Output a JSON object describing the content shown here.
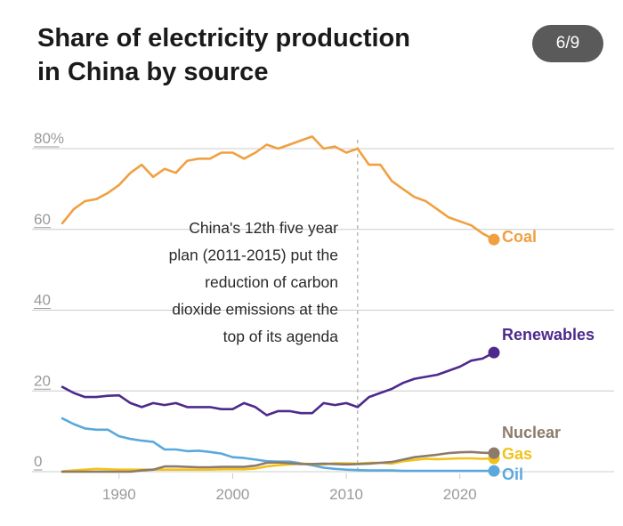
{
  "title_line1": "Share of electricity production",
  "title_line2": "in China by source",
  "page_indicator": "6/9",
  "colors": {
    "coal": "#f0a040",
    "renewables": "#4d2a8c",
    "nuclear": "#8c7b6b",
    "gas": "#f2c21b",
    "oil": "#5aa9dc",
    "grid": "#cccccc",
    "tick": "#9a9a9a"
  },
  "chart_data": {
    "type": "line",
    "title": "Share of electricity production in China by source",
    "xlabel": "",
    "ylabel": "",
    "xlim": [
      1985,
      2023
    ],
    "ylim": [
      0,
      80
    ],
    "x_ticks": [
      1990,
      2000,
      2010,
      2020
    ],
    "y_ticks": [
      {
        "value": 0,
        "label": "0"
      },
      {
        "value": 20,
        "label": "20"
      },
      {
        "value": 40,
        "label": "40"
      },
      {
        "value": 60,
        "label": "60"
      },
      {
        "value": 80,
        "label": "80%"
      }
    ],
    "annotation": {
      "x": 2011,
      "lines": [
        "China's 12th five year",
        "plan (2011-2015) put the",
        "reduction of carbon",
        "dioxide emissions at the",
        "top of its agenda"
      ]
    },
    "x": [
      1985,
      1986,
      1987,
      1988,
      1989,
      1990,
      1991,
      1992,
      1993,
      1994,
      1995,
      1996,
      1997,
      1998,
      1999,
      2000,
      2001,
      2002,
      2003,
      2004,
      2005,
      2006,
      2007,
      2008,
      2009,
      2010,
      2011,
      2012,
      2013,
      2014,
      2015,
      2016,
      2017,
      2018,
      2019,
      2020,
      2021,
      2022,
      2023
    ],
    "series": [
      {
        "name": "Coal",
        "key": "coal",
        "values": [
          61.5,
          65,
          67,
          67.5,
          69,
          71,
          74,
          76,
          73,
          75,
          74,
          77,
          77.5,
          77.5,
          79,
          79,
          77.5,
          79,
          81,
          80,
          81,
          82,
          83,
          80,
          80.5,
          79,
          80,
          76,
          76,
          72,
          70,
          68,
          67,
          65,
          63,
          62,
          61,
          59,
          57.5
        ]
      },
      {
        "name": "Renewables",
        "key": "renewables",
        "values": [
          21,
          19.5,
          18.5,
          18.5,
          18.8,
          18.9,
          17,
          16,
          17,
          16.5,
          17,
          16,
          16,
          16,
          15.5,
          15.5,
          17,
          16,
          14,
          15,
          15,
          14.5,
          14.5,
          17,
          16.5,
          17,
          16,
          18.5,
          19.5,
          20.5,
          22,
          23,
          23.5,
          24,
          25,
          26,
          27.5,
          28,
          29.5
        ]
      },
      {
        "name": "Nuclear",
        "key": "nuclear",
        "values": [
          0,
          0,
          0,
          0,
          0,
          0,
          0,
          0.3,
          0.5,
          1.3,
          1.3,
          1.2,
          1.1,
          1.1,
          1.2,
          1.2,
          1.2,
          1.5,
          2.2,
          2.3,
          2.1,
          1.9,
          1.9,
          2.0,
          1.9,
          1.8,
          1.9,
          2.0,
          2.2,
          2.4,
          3.0,
          3.6,
          3.9,
          4.2,
          4.6,
          4.8,
          4.9,
          4.7,
          4.6
        ]
      },
      {
        "name": "Gas",
        "key": "gas",
        "values": [
          0.1,
          0.3,
          0.5,
          0.7,
          0.6,
          0.5,
          0.5,
          0.5,
          0.5,
          0.5,
          0.5,
          0.5,
          0.5,
          0.5,
          0.6,
          0.6,
          0.6,
          0.8,
          1.3,
          1.6,
          1.8,
          2.0,
          1.9,
          1.8,
          2.1,
          2.1,
          2.0,
          2.2,
          2.2,
          2.0,
          2.6,
          2.9,
          3.2,
          3.1,
          3.2,
          3.3,
          3.3,
          3.2,
          3.3
        ]
      },
      {
        "name": "Oil",
        "key": "oil",
        "values": [
          13.2,
          11.8,
          10.7,
          10.4,
          10.4,
          8.8,
          8.1,
          7.7,
          7.4,
          5.5,
          5.5,
          5.1,
          5.2,
          4.9,
          4.5,
          3.6,
          3.4,
          3.0,
          2.6,
          2.5,
          2.5,
          2.1,
          1.6,
          1.0,
          0.7,
          0.5,
          0.4,
          0.3,
          0.3,
          0.3,
          0.2,
          0.2,
          0.2,
          0.2,
          0.2,
          0.2,
          0.2,
          0.2,
          0.2
        ]
      }
    ]
  }
}
